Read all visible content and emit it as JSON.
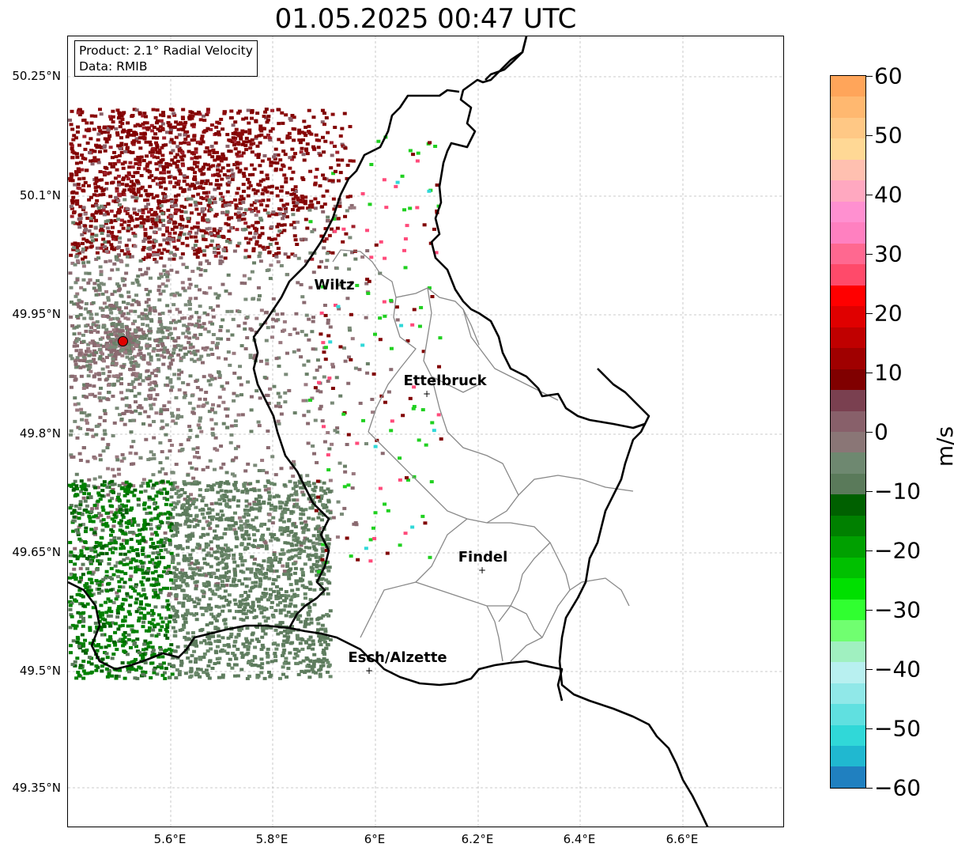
{
  "title": "01.05.2025 00:47 UTC",
  "info": {
    "product": "Product: 2.1° Radial Velocity",
    "data": "Data: RMIB"
  },
  "lat_labels": [
    "50.25°N",
    "50.1°N",
    "49.95°N",
    "49.8°N",
    "49.65°N",
    "49.5°N",
    "49.35°N"
  ],
  "lon_labels": [
    "5.6°E",
    "5.8°E",
    "6°E",
    "6.2°E",
    "6.4°E",
    "6.6°E"
  ],
  "cities": [
    {
      "name": "Wiltz"
    },
    {
      "name": "Ettelbruck"
    },
    {
      "name": "Findel"
    },
    {
      "name": "Esch/Alzette"
    }
  ],
  "colorbar": {
    "unit": "m/s",
    "ticks": [
      "60",
      "50",
      "40",
      "30",
      "20",
      "10",
      "0",
      "−10",
      "−20",
      "−30",
      "−40",
      "−50",
      "−60"
    ],
    "colors_top_to_bottom": [
      "#ffa55a",
      "#ffb870",
      "#ffc885",
      "#ffd895",
      "#ffc0b0",
      "#ffa8c0",
      "#ff90d0",
      "#ff80c0",
      "#ff6890",
      "#ff4a6a",
      "#ff0000",
      "#e00000",
      "#c00000",
      "#a00000",
      "#800000",
      "#7a4050",
      "#88606a",
      "#8a7676",
      "#6e8870",
      "#5a7a5a",
      "#006000",
      "#008000",
      "#00a000",
      "#00c000",
      "#00e000",
      "#30ff30",
      "#70ff70",
      "#a0f0c0",
      "#b8f0f0",
      "#90e8e8",
      "#60e0e0",
      "#30d8d8",
      "#20b8d0",
      "#2080c0"
    ],
    "max": 60,
    "min": -60
  }
}
